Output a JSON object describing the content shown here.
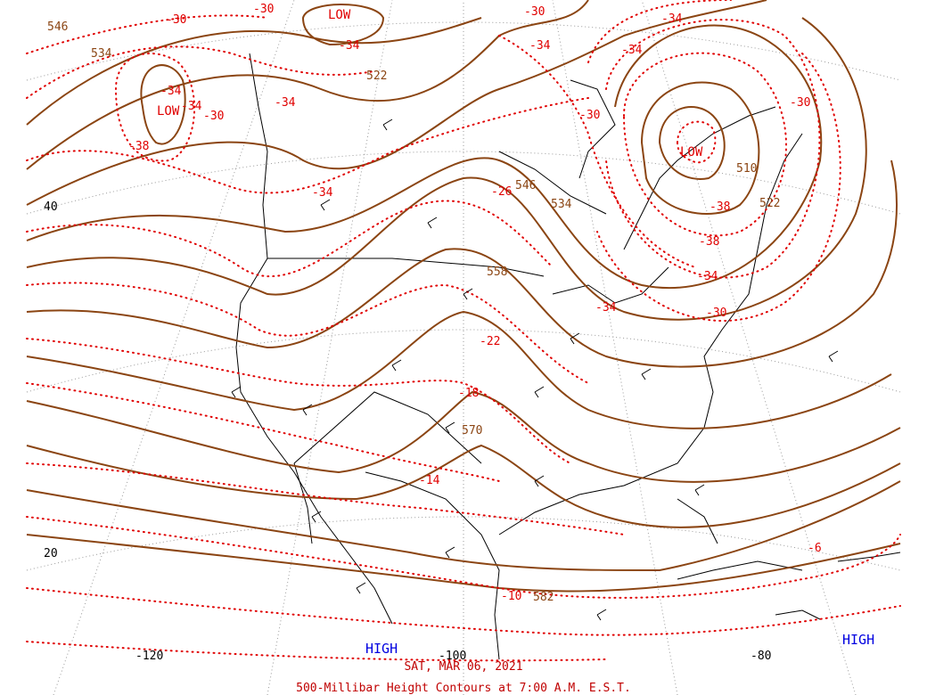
{
  "map": {
    "date_label": "SAT, MAR 06, 2021",
    "caption": "500-Millibar Height Contours at 7:00 A.M. E.S.T.",
    "colors": {
      "height": "#8b4513",
      "temperature": "#e00000",
      "high": "#0000e0",
      "coast": "#000000"
    },
    "lat_labels": [
      "40",
      "20"
    ],
    "lon_labels": [
      "-120",
      "-100",
      "-80"
    ],
    "pressure_centers": [
      {
        "type": "LOW",
        "label": "LOW"
      },
      {
        "type": "LOW",
        "label": "LOW"
      },
      {
        "type": "LOW",
        "label": "LOW"
      },
      {
        "type": "HIGH",
        "label": "HIGH"
      },
      {
        "type": "HIGH",
        "label": "HIGH"
      }
    ],
    "height_labels": [
      "546",
      "534",
      "522",
      "546",
      "534",
      "558",
      "570",
      "582",
      "510",
      "522"
    ],
    "temp_labels": [
      "-30",
      "-34",
      "-30",
      "-34",
      "-34",
      "-30",
      "-34",
      "-34",
      "-30",
      "-38",
      "-34",
      "-26",
      "-30",
      "-34",
      "-34",
      "-30",
      "-38",
      "-38",
      "-34",
      "-30",
      "-22",
      "-18",
      "-14",
      "-10",
      "-6"
    ]
  }
}
